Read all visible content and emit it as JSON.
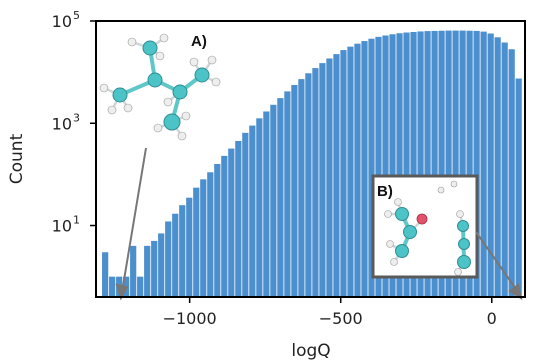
{
  "chart_data": {
    "type": "bar",
    "xlabel": "logQ",
    "ylabel": "Count",
    "yscale": "log",
    "xlim": [
      -1310,
      110
    ],
    "ylim": [
      0.4,
      100000
    ],
    "grid": false,
    "xticks": [
      {
        "value": -1000,
        "label": "−1000"
      },
      {
        "value": -500,
        "label": "−500"
      },
      {
        "value": 0,
        "label": "0"
      }
    ],
    "yticks": [
      {
        "value": 10,
        "base": "10",
        "exp": "1"
      },
      {
        "value": 1000,
        "base": "10",
        "exp": "3"
      },
      {
        "value": 100000,
        "base": "10",
        "exp": "5"
      }
    ],
    "bar_color": "#4b8fce",
    "bin_width": 23.2,
    "bin_start": -1290,
    "counts": [
      3,
      1,
      1,
      1,
      4,
      1,
      4,
      5,
      7,
      12,
      17,
      25,
      35,
      55,
      80,
      110,
      160,
      230,
      320,
      450,
      650,
      900,
      1250,
      1700,
      2300,
      3100,
      4200,
      5600,
      7300,
      9500,
      12000,
      15000,
      18500,
      22500,
      27000,
      31500,
      36000,
      40500,
      45000,
      49000,
      52000,
      55000,
      57500,
      59500,
      61000,
      62500,
      63500,
      64000,
      64500,
      65000,
      65000,
      65000,
      64500,
      64000,
      62000,
      57000,
      48000,
      38000,
      28000,
      7500
    ],
    "annotations": [
      {
        "label": "A)"
      },
      {
        "label": "B)"
      }
    ]
  }
}
